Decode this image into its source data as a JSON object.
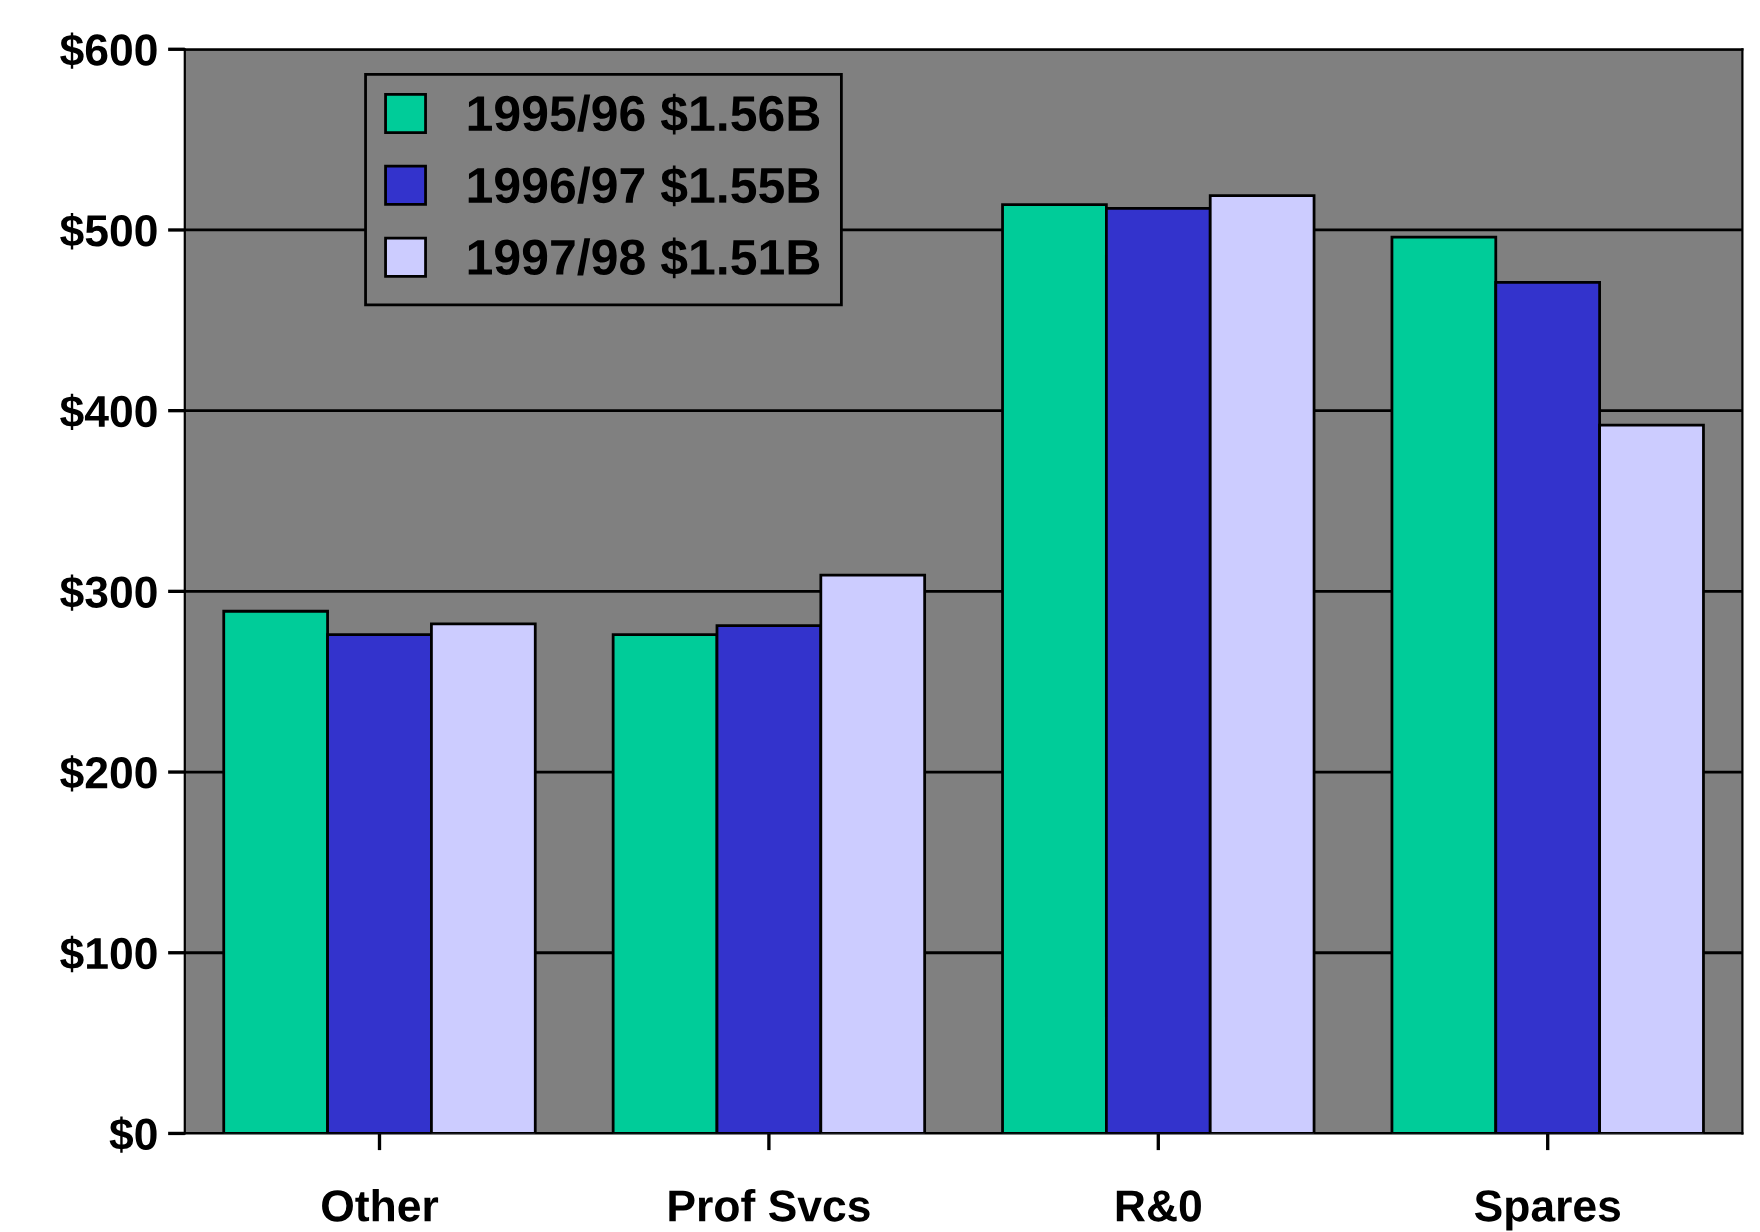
{
  "chart_data": {
    "type": "bar",
    "categories": [
      "Other",
      "Prof Svcs",
      "R&0",
      "Spares"
    ],
    "series": [
      {
        "name": "1995/96 $1.56B",
        "color": "#00cc99",
        "values": [
          289,
          276,
          514,
          496
        ]
      },
      {
        "name": "1996/97 $1.55B",
        "color": "#3333cc",
        "values": [
          276,
          281,
          512,
          471
        ]
      },
      {
        "name": "1997/98 $1.51B",
        "color": "#ccccff",
        "values": [
          282,
          309,
          519,
          392
        ]
      }
    ],
    "ylim": [
      0,
      600
    ],
    "yticks": [
      {
        "value": 0,
        "label": "$0"
      },
      {
        "value": 100,
        "label": "$100"
      },
      {
        "value": 200,
        "label": "$200"
      },
      {
        "value": 300,
        "label": "$300"
      },
      {
        "value": 400,
        "label": "$400"
      },
      {
        "value": 500,
        "label": "$500"
      },
      {
        "value": 600,
        "label": "$600"
      }
    ],
    "grid": "y",
    "legend": "top left"
  }
}
